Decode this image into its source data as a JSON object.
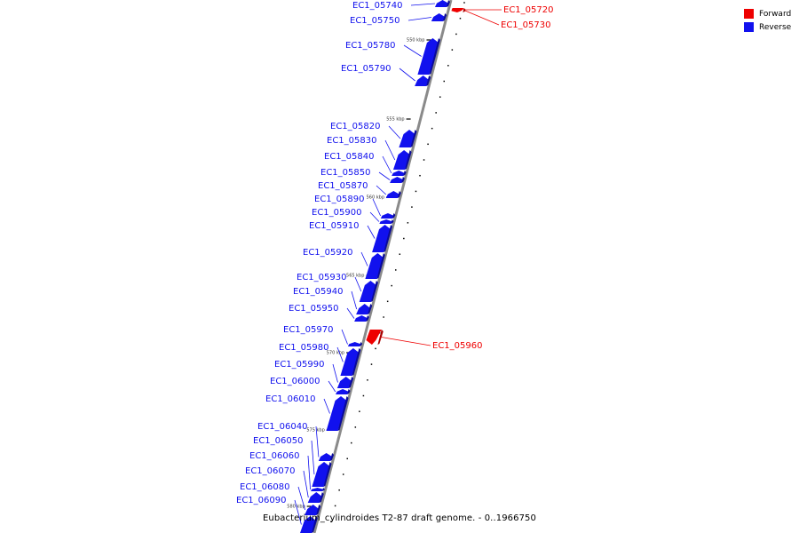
{
  "legend": {
    "forward_label": "Forward",
    "reverse_label": "Reverse",
    "forward_color": "#ee0000",
    "reverse_color": "#1111ee"
  },
  "caption": "Eubacterium_cylindroides T2-87 draft genome. - 0..1966750",
  "position_labels": [
    "550 kbp",
    "555 kbp",
    "560 kbp",
    "565 kbp",
    "570 kbp",
    "575 kbp",
    "580 kbp"
  ],
  "genes": [
    {
      "id": "EC1_05720",
      "strand": "forward"
    },
    {
      "id": "EC1_05730",
      "strand": "forward"
    },
    {
      "id": "EC1_05740",
      "strand": "reverse"
    },
    {
      "id": "EC1_05750",
      "strand": "reverse"
    },
    {
      "id": "EC1_05780",
      "strand": "reverse"
    },
    {
      "id": "EC1_05790",
      "strand": "reverse"
    },
    {
      "id": "EC1_05820",
      "strand": "reverse"
    },
    {
      "id": "EC1_05830",
      "strand": "reverse"
    },
    {
      "id": "EC1_05840",
      "strand": "reverse"
    },
    {
      "id": "EC1_05850",
      "strand": "reverse"
    },
    {
      "id": "EC1_05870",
      "strand": "reverse"
    },
    {
      "id": "EC1_05890",
      "strand": "reverse"
    },
    {
      "id": "EC1_05900",
      "strand": "reverse"
    },
    {
      "id": "EC1_05910",
      "strand": "reverse"
    },
    {
      "id": "EC1_05920",
      "strand": "reverse"
    },
    {
      "id": "EC1_05930",
      "strand": "reverse"
    },
    {
      "id": "EC1_05940",
      "strand": "reverse"
    },
    {
      "id": "EC1_05950",
      "strand": "reverse"
    },
    {
      "id": "EC1_05960",
      "strand": "forward"
    },
    {
      "id": "EC1_05970",
      "strand": "reverse"
    },
    {
      "id": "EC1_05980",
      "strand": "reverse"
    },
    {
      "id": "EC1_05990",
      "strand": "reverse"
    },
    {
      "id": "EC1_06000",
      "strand": "reverse"
    },
    {
      "id": "EC1_06010",
      "strand": "reverse"
    },
    {
      "id": "EC1_06040",
      "strand": "reverse"
    },
    {
      "id": "EC1_06050",
      "strand": "reverse"
    },
    {
      "id": "EC1_06060",
      "strand": "reverse"
    },
    {
      "id": "EC1_06070",
      "strand": "reverse"
    },
    {
      "id": "EC1_06080",
      "strand": "reverse"
    },
    {
      "id": "EC1_06090",
      "strand": "reverse"
    }
  ]
}
